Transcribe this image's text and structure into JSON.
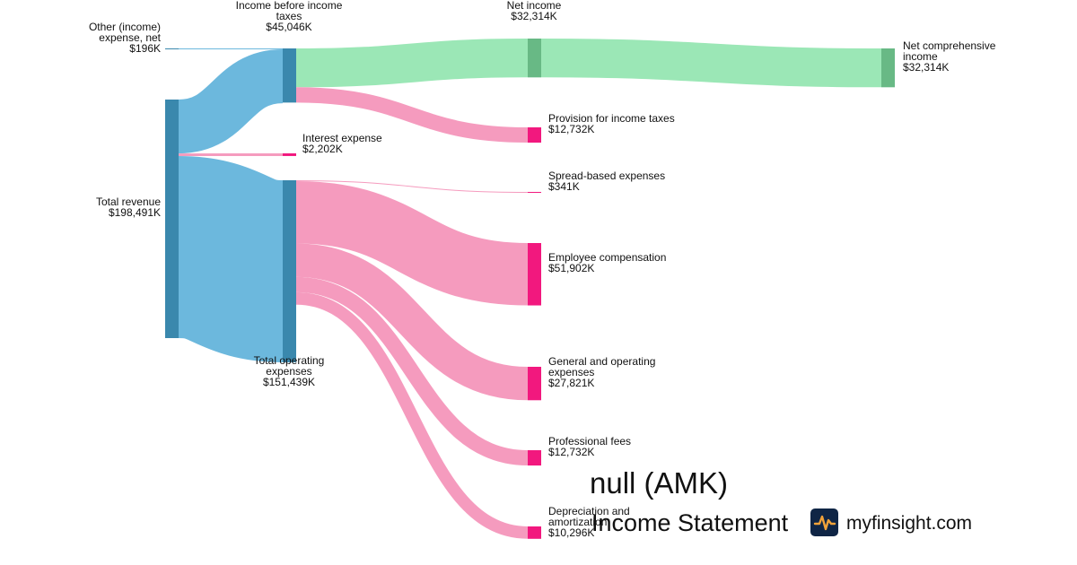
{
  "title": "null (AMK)",
  "subtitle": "Income Statement",
  "brand": {
    "name": "myfinsight.com",
    "icon": "pulse-line-icon"
  },
  "colors": {
    "revenue_node": "#3a88ad",
    "revenue_flow": "#6cb8dd",
    "profit_node": "#68b985",
    "profit_flow": "#9be7b6",
    "expense_node": "#f2187e",
    "expense_flow": "#f59bbe"
  },
  "chart_data": {
    "type": "sankey",
    "units": "K USD",
    "nodes": [
      {
        "id": "other",
        "lines": [
          "Other (income)",
          "expense, net"
        ],
        "value_label": "$196K",
        "value": 196
      },
      {
        "id": "revenue",
        "lines": [
          "Total revenue"
        ],
        "value_label": "$198,491K",
        "value": 198491
      },
      {
        "id": "ibt",
        "lines": [
          "Income before income",
          "taxes"
        ],
        "value_label": "$45,046K",
        "value": 45046
      },
      {
        "id": "interest",
        "lines": [
          "Interest expense"
        ],
        "value_label": "$2,202K",
        "value": 2202
      },
      {
        "id": "opex",
        "lines": [
          "Total operating",
          "expenses"
        ],
        "value_label": "$151,439K",
        "value": 151439
      },
      {
        "id": "netinc",
        "lines": [
          "Net income"
        ],
        "value_label": "$32,314K",
        "value": 32314
      },
      {
        "id": "tax",
        "lines": [
          "Provision for income taxes"
        ],
        "value_label": "$12,732K",
        "value": 12732
      },
      {
        "id": "spread",
        "lines": [
          "Spread-based expenses"
        ],
        "value_label": "$341K",
        "value": 341
      },
      {
        "id": "comp",
        "lines": [
          "Employee compensation"
        ],
        "value_label": "$51,902K",
        "value": 51902
      },
      {
        "id": "general",
        "lines": [
          "General and operating",
          "expenses"
        ],
        "value_label": "$27,821K",
        "value": 27821
      },
      {
        "id": "prof",
        "lines": [
          "Professional fees"
        ],
        "value_label": "$12,732K",
        "value": 12732
      },
      {
        "id": "dep",
        "lines": [
          "Depreciation and",
          "amortization"
        ],
        "value_label": "$10,296K",
        "value": 10296
      },
      {
        "id": "nci",
        "lines": [
          "Net comprehensive",
          "income"
        ],
        "value_label": "$32,314K",
        "value": 32314
      }
    ],
    "links": [
      {
        "source": "other",
        "target": "ibt",
        "value": 196
      },
      {
        "source": "revenue",
        "target": "ibt",
        "value": 44850
      },
      {
        "source": "revenue",
        "target": "interest",
        "value": 2202
      },
      {
        "source": "revenue",
        "target": "opex",
        "value": 151439
      },
      {
        "source": "ibt",
        "target": "netinc",
        "value": 32314
      },
      {
        "source": "ibt",
        "target": "tax",
        "value": 12732
      },
      {
        "source": "opex",
        "target": "spread",
        "value": 341
      },
      {
        "source": "opex",
        "target": "comp",
        "value": 51902
      },
      {
        "source": "opex",
        "target": "general",
        "value": 27821
      },
      {
        "source": "opex",
        "target": "prof",
        "value": 12732
      },
      {
        "source": "opex",
        "target": "dep",
        "value": 10296
      },
      {
        "source": "netinc",
        "target": "nci",
        "value": 32314
      }
    ]
  }
}
